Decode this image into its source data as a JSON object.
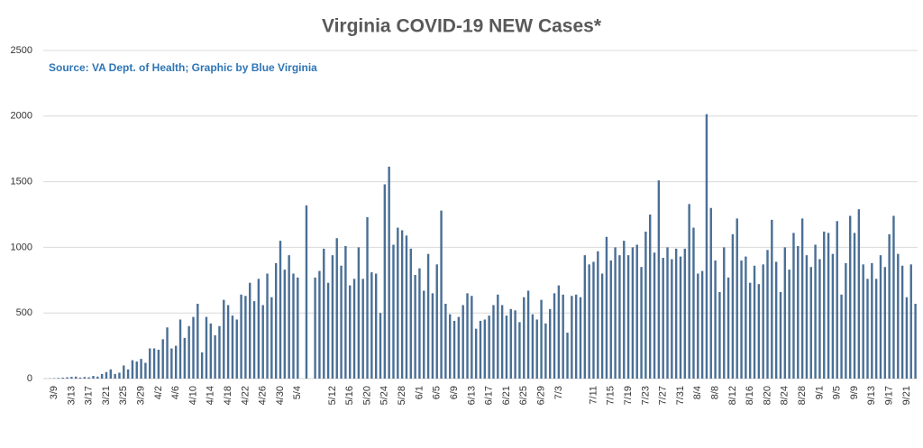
{
  "chart_data": {
    "type": "bar",
    "title": "Virginia COVID-19 NEW Cases*",
    "subtitle": "Source: VA Dept. of Health; Graphic by Blue Virginia",
    "color": "#4a6f96",
    "ylim": [
      0,
      2500
    ],
    "yticks": [
      0,
      500,
      1000,
      1500,
      2000,
      2500
    ],
    "grid": true,
    "categories": [
      null,
      null,
      "3/9",
      null,
      null,
      null,
      "3/13",
      null,
      null,
      null,
      "3/17",
      null,
      null,
      null,
      "3/21",
      null,
      null,
      null,
      "3/25",
      null,
      null,
      null,
      "3/29",
      null,
      null,
      null,
      "4/2",
      null,
      null,
      null,
      "4/6",
      null,
      null,
      null,
      "4/10",
      null,
      null,
      null,
      "4/14",
      null,
      null,
      null,
      "4/18",
      null,
      null,
      null,
      "4/22",
      null,
      null,
      null,
      "4/26",
      null,
      null,
      null,
      "4/30",
      null,
      null,
      null,
      "5/4",
      null,
      null,
      null,
      null,
      null,
      null,
      null,
      "5/12",
      null,
      null,
      null,
      "5/16",
      null,
      null,
      null,
      "5/20",
      null,
      null,
      null,
      "5/24",
      null,
      null,
      null,
      "5/28",
      null,
      null,
      null,
      "6/1",
      null,
      null,
      null,
      "6/5",
      null,
      null,
      null,
      "6/9",
      null,
      null,
      null,
      "6/13",
      null,
      null,
      null,
      "6/17",
      null,
      null,
      null,
      "6/21",
      null,
      null,
      null,
      "6/25",
      null,
      null,
      null,
      "6/29",
      null,
      null,
      null,
      "7/3",
      null,
      null,
      null,
      null,
      null,
      null,
      null,
      "7/11",
      null,
      null,
      null,
      "7/15",
      null,
      null,
      null,
      "7/19",
      null,
      null,
      null,
      "7/23",
      null,
      null,
      null,
      "7/27",
      null,
      null,
      null,
      "7/31",
      null,
      null,
      null,
      "8/4",
      null,
      null,
      null,
      "8/8",
      null,
      null,
      null,
      "8/12",
      null,
      null,
      null,
      "8/16",
      null,
      null,
      null,
      "8/20",
      null,
      null,
      null,
      "8/24",
      null,
      null,
      null,
      "8/28",
      null,
      null,
      null,
      "9/1",
      null,
      null,
      null,
      "9/5",
      null,
      null,
      null,
      "9/9",
      null,
      null,
      null,
      "9/13",
      null,
      null,
      null,
      "9/17",
      null,
      null,
      null,
      "9/21",
      null,
      null
    ],
    "values": [
      1,
      2,
      3,
      5,
      7,
      10,
      13,
      15,
      8,
      12,
      10,
      20,
      15,
      35,
      50,
      70,
      35,
      45,
      100,
      70,
      140,
      130,
      150,
      120,
      230,
      230,
      220,
      300,
      390,
      230,
      250,
      450,
      310,
      400,
      470,
      570,
      200,
      470,
      420,
      330,
      400,
      600,
      560,
      480,
      450,
      640,
      630,
      730,
      590,
      760,
      560,
      800,
      620,
      880,
      1050,
      830,
      940,
      800,
      770,
      0,
      1320,
      0,
      770,
      820,
      990,
      730,
      940,
      1070,
      860,
      1010,
      710,
      760,
      1000,
      760,
      1230,
      810,
      800,
      500,
      1480,
      1615,
      1020,
      1150,
      1130,
      1090,
      990,
      790,
      840,
      670,
      950,
      650,
      870,
      1280,
      570,
      490,
      440,
      470,
      560,
      650,
      630,
      380,
      440,
      450,
      480,
      560,
      640,
      560,
      480,
      530,
      520,
      430,
      620,
      670,
      490,
      450,
      600,
      420,
      530,
      650,
      710,
      640,
      350,
      630,
      640,
      620,
      940,
      870,
      890,
      970,
      800,
      1080,
      900,
      1000,
      940,
      1050,
      940,
      1000,
      1020,
      850,
      1120,
      1250,
      960,
      1510,
      920,
      1000,
      910,
      990,
      930,
      990,
      1330,
      1150,
      800,
      820,
      2015,
      1300,
      900,
      660,
      1000,
      770,
      1100,
      1220,
      900,
      930,
      730,
      860,
      720,
      870,
      980,
      1210,
      890,
      660,
      1000,
      830,
      1110,
      1010,
      1220,
      940,
      850,
      1020,
      910,
      1120,
      1110,
      950,
      1200,
      640,
      880,
      1240,
      1110,
      1290,
      870,
      760,
      880,
      760,
      940,
      850,
      1100,
      1240,
      950,
      860,
      620,
      870,
      570
    ]
  }
}
